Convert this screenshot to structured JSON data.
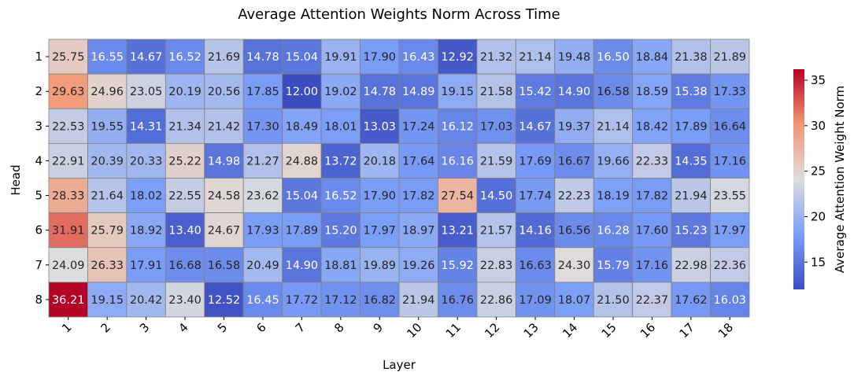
{
  "chart_data": {
    "type": "heatmap",
    "title": "Average Attention Weights Norm Across Time",
    "xlabel": "Layer",
    "ylabel": "Head",
    "x_categories": [
      "1",
      "2",
      "3",
      "4",
      "5",
      "6",
      "7",
      "8",
      "9",
      "10",
      "11",
      "12",
      "13",
      "14",
      "15",
      "16",
      "17",
      "18"
    ],
    "y_categories": [
      "1",
      "2",
      "3",
      "4",
      "5",
      "6",
      "7",
      "8"
    ],
    "values": [
      [
        25.75,
        16.55,
        14.67,
        16.52,
        21.69,
        14.78,
        15.04,
        19.91,
        17.9,
        16.43,
        12.92,
        21.32,
        21.14,
        19.48,
        16.5,
        18.84,
        21.38,
        21.89
      ],
      [
        29.63,
        24.96,
        23.05,
        20.19,
        20.56,
        17.85,
        12.0,
        19.02,
        14.78,
        14.89,
        19.15,
        21.58,
        15.42,
        14.9,
        16.58,
        18.59,
        15.38,
        17.33
      ],
      [
        22.53,
        19.55,
        14.31,
        21.34,
        21.42,
        17.3,
        18.49,
        18.01,
        13.03,
        17.24,
        16.12,
        17.03,
        14.67,
        19.37,
        21.14,
        18.42,
        17.89,
        16.64
      ],
      [
        22.91,
        20.39,
        20.33,
        25.22,
        14.98,
        21.27,
        24.88,
        13.72,
        20.18,
        17.64,
        16.16,
        21.59,
        17.69,
        16.67,
        19.66,
        22.33,
        14.35,
        17.16
      ],
      [
        28.33,
        21.64,
        18.02,
        22.55,
        24.58,
        23.62,
        15.04,
        16.52,
        17.9,
        17.82,
        27.54,
        14.5,
        17.74,
        22.23,
        18.19,
        17.82,
        21.94,
        23.55
      ],
      [
        31.91,
        25.79,
        18.92,
        13.4,
        24.67,
        17.93,
        17.89,
        15.2,
        17.97,
        18.97,
        13.21,
        21.57,
        14.16,
        16.56,
        16.28,
        17.6,
        15.23,
        17.97
      ],
      [
        24.09,
        26.33,
        17.91,
        16.68,
        16.58,
        20.49,
        14.9,
        18.81,
        19.89,
        19.26,
        15.92,
        22.83,
        16.63,
        24.3,
        15.79,
        17.16,
        22.98,
        22.36
      ],
      [
        36.21,
        19.15,
        20.42,
        23.4,
        12.52,
        16.45,
        17.72,
        17.12,
        16.82,
        21.94,
        16.76,
        22.86,
        17.09,
        18.07,
        21.5,
        22.37,
        17.62,
        16.03
      ]
    ],
    "colormap": "coolwarm",
    "vmin": 12.0,
    "vmax": 36.21,
    "colorbar": {
      "label": "Average Attention Weight Norm",
      "ticks": [
        "15",
        "20",
        "25",
        "30",
        "35"
      ]
    },
    "grid": false,
    "cell_border_color": "#808080"
  }
}
